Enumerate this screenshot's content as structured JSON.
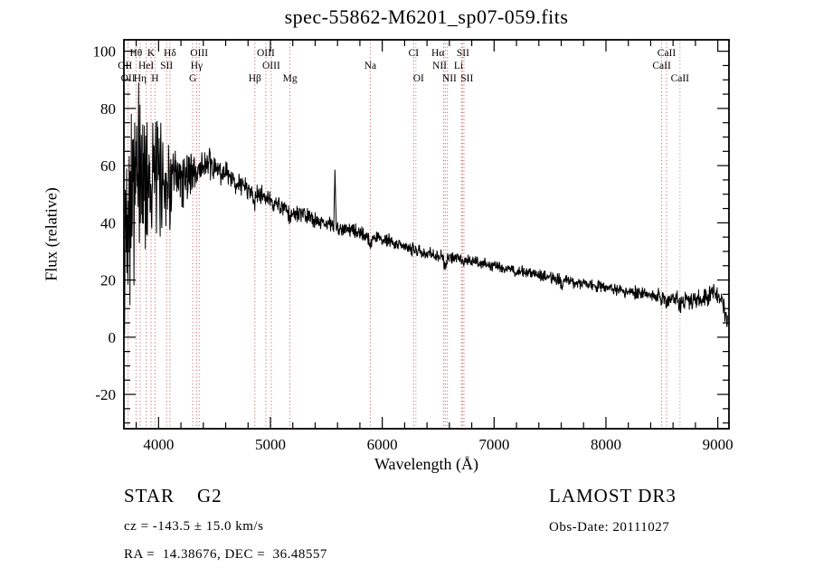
{
  "footer": {
    "class_label": "STAR    G2",
    "survey": "LAMOST DR3",
    "cz": "cz = -143.5 ± 15.0 km/s",
    "obs_date": "Obs-Date: 20111027",
    "ra_dec": "RA =  14.38676, DEC =  36.48557"
  },
  "chart_data": {
    "type": "line",
    "title": "spec-55862-M6201_sp07-059.fits",
    "xlabel": "Wavelength (Å)",
    "ylabel": "Flux (relative)",
    "xlim": [
      3690,
      9100
    ],
    "ylim": [
      -32,
      104
    ],
    "x_major_ticks": [
      4000,
      5000,
      6000,
      7000,
      8000,
      9000
    ],
    "x_minor_step": 200,
    "y_major_ticks": [
      100,
      80,
      60,
      40,
      20,
      0,
      -20
    ],
    "y_minor_step": 5,
    "grid": false,
    "line_color": "#000000",
    "marker_default_color": "#c46a6a",
    "marker_alt_color": "#9a9ac4",
    "spectral_lines": [
      {
        "label": "OII",
        "wavelength": 3727,
        "row": 2,
        "label_wavelength": 3700
      },
      {
        "label": "OII",
        "wavelength": 3727,
        "row": 3,
        "no_line": true
      },
      {
        "label": "Hθ",
        "wavelength": 3798,
        "row": 1
      },
      {
        "label": "Hη",
        "wavelength": 3835,
        "row": 3
      },
      {
        "label": "HeI",
        "wavelength": 3889,
        "row": 2
      },
      {
        "label": "K",
        "wavelength": 3933,
        "row": 1
      },
      {
        "label": "H",
        "wavelength": 3968,
        "row": 3
      },
      {
        "label": "SII",
        "wavelength": 4072,
        "row": 2
      },
      {
        "label": "Hδ",
        "wavelength": 4102,
        "row": 1
      },
      {
        "label": "G",
        "wavelength": 4305,
        "row": 3
      },
      {
        "label": "Hγ",
        "wavelength": 4340,
        "row": 2
      },
      {
        "label": "OIII",
        "wavelength": 4363,
        "row": 1
      },
      {
        "label": "Hβ",
        "wavelength": 4861,
        "row": 3
      },
      {
        "label": "OIII",
        "wavelength": 4959,
        "row": 1
      },
      {
        "label": "OIII",
        "wavelength": 5007,
        "row": 2
      },
      {
        "label": "Mg",
        "wavelength": 5175,
        "row": 3
      },
      {
        "label": "Na",
        "wavelength": 5893,
        "row": 2
      },
      {
        "label": "CI",
        "wavelength": 6280,
        "row": 1
      },
      {
        "label": "OI",
        "wavelength": 6300,
        "row": 3,
        "label_wavelength": 6325,
        "color": "#9a9ac4"
      },
      {
        "label": "NII",
        "wavelength": 6548,
        "row": 2,
        "label_wavelength": 6512
      },
      {
        "label": "Hα",
        "wavelength": 6563,
        "row": 1,
        "label_wavelength": 6498
      },
      {
        "label": "NII",
        "wavelength": 6583,
        "row": 3,
        "label_wavelength": 6600
      },
      {
        "label": "Li",
        "wavelength": 6708,
        "row": 2,
        "label_wavelength": 6682
      },
      {
        "label": "SII",
        "wavelength": 6717,
        "row": 1,
        "label_wavelength": 6722
      },
      {
        "label": "SII",
        "wavelength": 6731,
        "row": 3,
        "label_wavelength": 6757
      },
      {
        "label": "CaII",
        "wavelength": 8498,
        "row": 2
      },
      {
        "label": "CaII",
        "wavelength": 8542,
        "row": 1
      },
      {
        "label": "CaII",
        "wavelength": 8662,
        "row": 3,
        "color": "#9a9ac4"
      }
    ],
    "continuum": [
      [
        3690,
        34
      ],
      [
        3720,
        48
      ],
      [
        3760,
        53
      ],
      [
        3800,
        55
      ],
      [
        3850,
        56
      ],
      [
        3900,
        57
      ],
      [
        3950,
        57
      ],
      [
        4000,
        56
      ],
      [
        4050,
        56
      ],
      [
        4100,
        55
      ],
      [
        4150,
        54
      ],
      [
        4200,
        55
      ],
      [
        4250,
        57
      ],
      [
        4300,
        58
      ],
      [
        4350,
        59
      ],
      [
        4400,
        60
      ],
      [
        4450,
        60
      ],
      [
        4500,
        59
      ],
      [
        4550,
        58
      ],
      [
        4600,
        57
      ],
      [
        4650,
        55
      ],
      [
        4700,
        54
      ],
      [
        4750,
        53
      ],
      [
        4800,
        52
      ],
      [
        4850,
        50
      ],
      [
        4900,
        50
      ],
      [
        4950,
        49
      ],
      [
        5000,
        47.5
      ],
      [
        5050,
        46.5
      ],
      [
        5100,
        45.5
      ],
      [
        5150,
        44
      ],
      [
        5200,
        43.5
      ],
      [
        5250,
        43
      ],
      [
        5300,
        42.5
      ],
      [
        5350,
        42
      ],
      [
        5400,
        41
      ],
      [
        5450,
        40.5
      ],
      [
        5500,
        40
      ],
      [
        5550,
        39
      ],
      [
        5600,
        38.5
      ],
      [
        5650,
        38
      ],
      [
        5700,
        37.5
      ],
      [
        5750,
        37
      ],
      [
        5800,
        36.5
      ],
      [
        5850,
        35.5
      ],
      [
        5900,
        34.8
      ],
      [
        5950,
        34.6
      ],
      [
        6000,
        34.4
      ],
      [
        6050,
        33.8
      ],
      [
        6100,
        33.2
      ],
      [
        6150,
        32.4
      ],
      [
        6200,
        31.6
      ],
      [
        6250,
        31
      ],
      [
        6300,
        30.4
      ],
      [
        6350,
        30
      ],
      [
        6400,
        29.4
      ],
      [
        6450,
        29
      ],
      [
        6500,
        28.4
      ],
      [
        6550,
        28
      ],
      [
        6600,
        27.8
      ],
      [
        6650,
        27.6
      ],
      [
        6700,
        27.4
      ],
      [
        6750,
        27
      ],
      [
        6800,
        26.6
      ],
      [
        6850,
        26.2
      ],
      [
        6900,
        25.8
      ],
      [
        6950,
        25.4
      ],
      [
        7000,
        25
      ],
      [
        7100,
        24.2
      ],
      [
        7200,
        23.4
      ],
      [
        7300,
        22.6
      ],
      [
        7400,
        21.8
      ],
      [
        7500,
        21
      ],
      [
        7600,
        20.2
      ],
      [
        7700,
        19.4
      ],
      [
        7800,
        18.6
      ],
      [
        7900,
        17.9
      ],
      [
        8000,
        17.3
      ],
      [
        8100,
        16.6
      ],
      [
        8200,
        16
      ],
      [
        8300,
        15.4
      ],
      [
        8400,
        14.8
      ],
      [
        8500,
        14.2
      ],
      [
        8600,
        13.4
      ],
      [
        8700,
        12.8
      ],
      [
        8800,
        12.9
      ],
      [
        8850,
        13.4
      ],
      [
        8900,
        14.2
      ],
      [
        8950,
        15.2
      ],
      [
        9000,
        14.6
      ],
      [
        9030,
        13
      ],
      [
        9060,
        9
      ],
      [
        9085,
        4
      ]
    ],
    "noise_envelope": [
      [
        3690,
        22
      ],
      [
        3740,
        20
      ],
      [
        3800,
        18
      ],
      [
        3860,
        16
      ],
      [
        3920,
        14
      ],
      [
        3980,
        12
      ],
      [
        4040,
        9.5
      ],
      [
        4100,
        8
      ],
      [
        4160,
        6.5
      ],
      [
        4220,
        5.5
      ],
      [
        4280,
        4.5
      ],
      [
        4350,
        3.6
      ],
      [
        4450,
        3
      ],
      [
        4600,
        2.4
      ],
      [
        4800,
        2
      ],
      [
        5000,
        1.8
      ],
      [
        5300,
        1.5
      ],
      [
        5600,
        1.4
      ],
      [
        6000,
        1.3
      ],
      [
        6500,
        1.2
      ],
      [
        7000,
        1.1
      ],
      [
        7500,
        1.15
      ],
      [
        8000,
        1.2
      ],
      [
        8400,
        1.4
      ],
      [
        8700,
        1.7
      ],
      [
        9000,
        2
      ],
      [
        9085,
        2.3
      ]
    ],
    "features": [
      {
        "center": 3692,
        "amp": -30,
        "width": 5
      },
      {
        "center": 4101,
        "amp": -3,
        "width": 8
      },
      {
        "center": 4340,
        "amp": -2.5,
        "width": 8
      },
      {
        "center": 4861,
        "amp": -3,
        "width": 9
      },
      {
        "center": 5175,
        "amp": -2,
        "width": 12
      },
      {
        "center": 5577,
        "amp": 19,
        "width": 4.5
      },
      {
        "center": 5893,
        "amp": -2.5,
        "width": 10
      },
      {
        "center": 6563,
        "amp": -3,
        "width": 10
      },
      {
        "center": 6870,
        "amp": -1.2,
        "width": 11
      },
      {
        "center": 7190,
        "amp": -1,
        "width": 14
      },
      {
        "center": 7605,
        "amp": -1.8,
        "width": 13
      },
      {
        "center": 8498,
        "amp": -1.5,
        "width": 8
      },
      {
        "center": 8542,
        "amp": -2.5,
        "width": 9
      },
      {
        "center": 8662,
        "amp": -2.5,
        "width": 9
      }
    ],
    "sample_step": 3,
    "noise_seed": 42,
    "noise_scale": 2.2
  }
}
